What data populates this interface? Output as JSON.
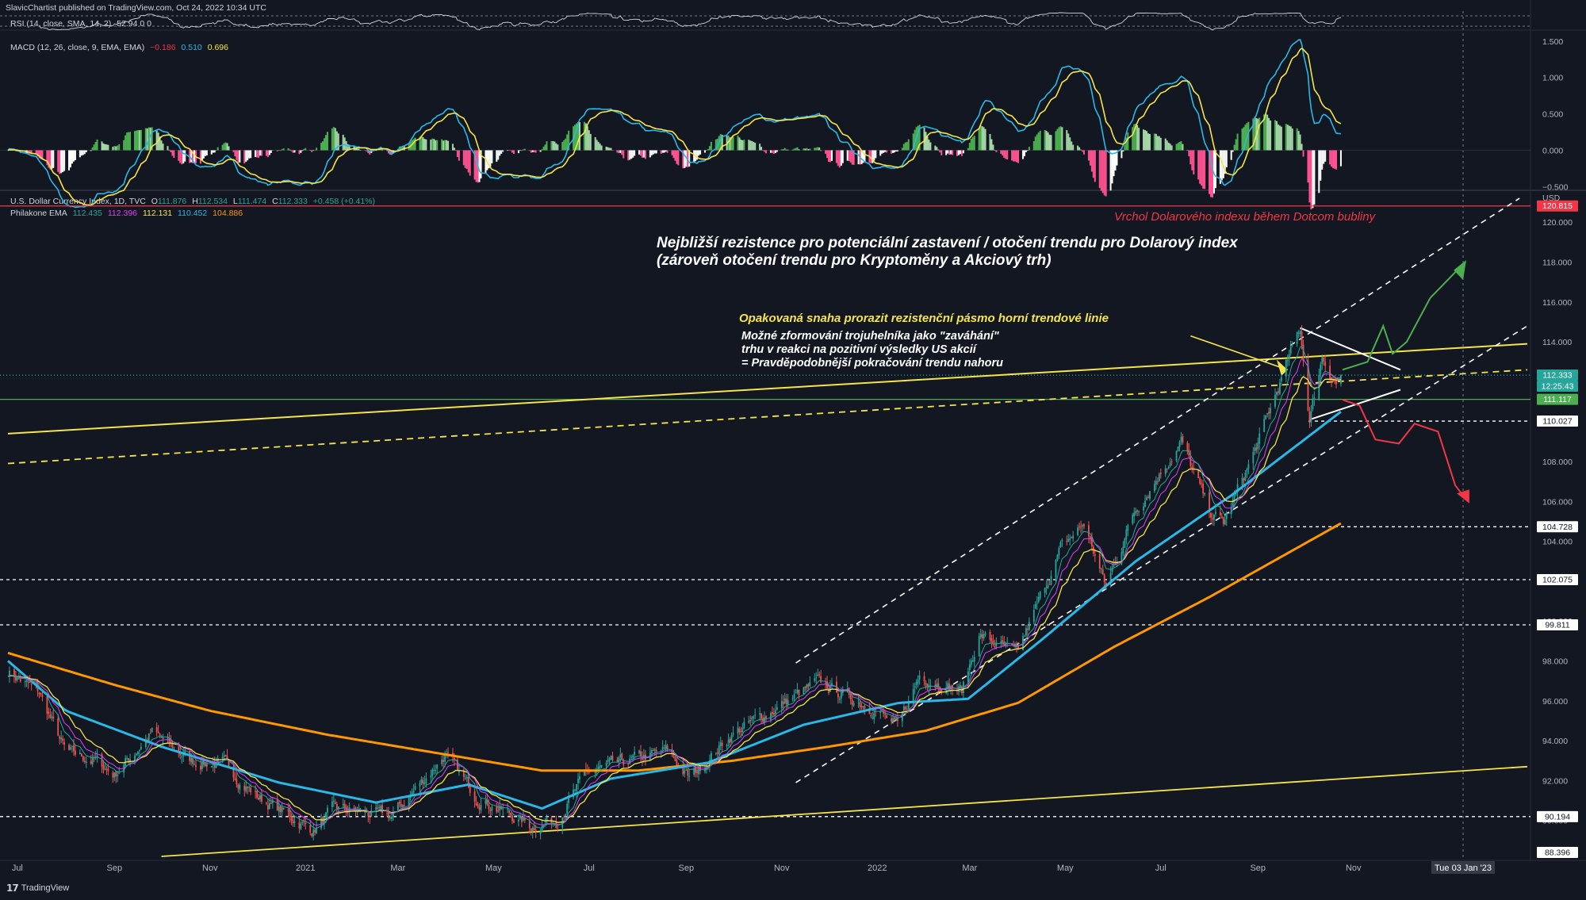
{
  "header": {
    "published": "SlavicChartist published on TradingView.com, Oct 24, 2022 10:34 UTC"
  },
  "rsi_legend": {
    "label": "RSI (14, close, SMA, 14, 2)",
    "values": "52.94  0  0"
  },
  "macd_legend": {
    "label": "MACD (12, 26, close, 9, EMA, EMA)",
    "v1": "−0.186",
    "v2": "0.510",
    "v3": "0.696",
    "colors": {
      "v1": "#f23645",
      "v2": "#2ab8e6",
      "v3": "#f5e54a"
    }
  },
  "symbol_legend": {
    "symbol": "U.S. Dollar Currency Index, 1D, TVC",
    "o_label": "O",
    "o": "111.876",
    "h_label": "H",
    "h": "112.534",
    "l_label": "L",
    "l": "111.474",
    "c_label": "C",
    "c": "112.333",
    "change": "+0.458 (+0.41%)"
  },
  "ema_legend": {
    "label": "Philakone EMA",
    "values": [
      "112.435",
      "112.396",
      "112.131",
      "110.452",
      "104.886"
    ],
    "colors": [
      "#26a69a",
      "#e040fb",
      "#f5e54a",
      "#2ab8e6",
      "#ff9800"
    ]
  },
  "annotations": {
    "dotcom_top": "Vrchol Dolarového indexu během Dotcom bubliny",
    "main_title_1": "Nejbližší rezistence pro potenciální zastavení / otočení trendu pro Dolarový index",
    "main_title_2": "(zároveň otočení trendu pro Kryptoměny a Akciový trh)",
    "yellow_note": "Opakovaná snaha prorazit rezistenční pásmo horní trendové linie",
    "triangle_note_1": "Možné zformování trojuhelníka jako \"zaváhání\"",
    "triangle_note_2": "trhu v reakci na pozitivní výsledky US akcií",
    "triangle_note_3": "=  Pravděpodobnější pokračování trendu nahoru"
  },
  "price_axis": {
    "currency": "USD",
    "ticks": [
      "120.000",
      "118.000",
      "116.000",
      "114.000",
      "110.000",
      "108.000",
      "106.000",
      "104.000",
      "102.000",
      "100.000",
      "98.000",
      "96.000",
      "94.000",
      "92.000",
      "90.000"
    ],
    "levels": [
      {
        "value": "120.815",
        "bg": "#f23645",
        "fg": "#ffffff"
      },
      {
        "value": "112.333",
        "bg": "#26a69a",
        "fg": "#ffffff"
      },
      {
        "value": "12:25:43",
        "bg": "#26a69a",
        "fg": "#ffffff"
      },
      {
        "value": "111.117",
        "bg": "#4caf50",
        "fg": "#ffffff"
      },
      {
        "value": "110.027",
        "bg": "#ffffff",
        "fg": "#131722"
      },
      {
        "value": "104.728",
        "bg": "#ffffff",
        "fg": "#131722"
      },
      {
        "value": "102.075",
        "bg": "#ffffff",
        "fg": "#131722"
      },
      {
        "value": "99.811",
        "bg": "#ffffff",
        "fg": "#131722"
      },
      {
        "value": "90.194",
        "bg": "#ffffff",
        "fg": "#131722"
      },
      {
        "value": "88.396",
        "bg": "#ffffff",
        "fg": "#131722"
      }
    ]
  },
  "macd_axis": {
    "ticks": [
      "1.500",
      "1.000",
      "0.500",
      "0.000",
      "−0.500"
    ]
  },
  "time_axis": {
    "labels": [
      "Jul",
      "Sep",
      "Nov",
      "2021",
      "Mar",
      "May",
      "Jul",
      "Sep",
      "Nov",
      "2022",
      "Mar",
      "May",
      "Jul",
      "Sep",
      "Nov"
    ],
    "cursor_label": "Tue 03 Jan '23"
  },
  "footer": {
    "brand": "TradingView"
  },
  "chart_data": {
    "type": "candlestick",
    "title": "U.S. Dollar Currency Index, 1D, TVC",
    "ylabel": "USD",
    "ylim": [
      88.0,
      121.6
    ],
    "x_range": [
      "2020-07",
      "2023-02"
    ],
    "ohlc_last": {
      "o": 111.876,
      "h": 112.534,
      "l": 111.474,
      "c": 112.333
    },
    "close_path": [
      [
        "2020-06-25",
        97.5
      ],
      [
        "2020-07-15",
        96.4
      ],
      [
        "2020-08-01",
        93.4
      ],
      [
        "2020-08-20",
        93.0
      ],
      [
        "2020-09-01",
        92.3
      ],
      [
        "2020-09-25",
        94.4
      ],
      [
        "2020-10-20",
        93.0
      ],
      [
        "2020-11-10",
        92.8
      ],
      [
        "2020-12-01",
        91.2
      ],
      [
        "2021-01-06",
        89.5
      ],
      [
        "2021-01-20",
        90.6
      ],
      [
        "2021-02-25",
        90.2
      ],
      [
        "2021-03-31",
        93.3
      ],
      [
        "2021-04-20",
        91.2
      ],
      [
        "2021-05-25",
        89.7
      ],
      [
        "2021-06-10",
        90.0
      ],
      [
        "2021-06-30",
        92.4
      ],
      [
        "2021-08-20",
        93.5
      ],
      [
        "2021-09-03",
        92.1
      ],
      [
        "2021-09-30",
        94.3
      ],
      [
        "2021-11-24",
        96.9
      ],
      [
        "2021-12-31",
        95.6
      ],
      [
        "2022-01-14",
        94.6
      ],
      [
        "2022-01-28",
        97.3
      ],
      [
        "2022-02-24",
        96.5
      ],
      [
        "2022-03-07",
        99.3
      ],
      [
        "2022-03-31",
        98.3
      ],
      [
        "2022-04-28",
        103.6
      ],
      [
        "2022-05-13",
        104.9
      ],
      [
        "2022-05-27",
        101.7
      ],
      [
        "2022-06-14",
        105.5
      ],
      [
        "2022-07-14",
        109.0
      ],
      [
        "2022-08-01",
        105.5
      ],
      [
        "2022-08-10",
        104.9
      ],
      [
        "2022-08-31",
        108.7
      ],
      [
        "2022-09-28",
        114.7
      ],
      [
        "2022-10-04",
        110.1
      ],
      [
        "2022-10-12",
        113.3
      ],
      [
        "2022-10-21",
        111.9
      ],
      [
        "2022-10-24",
        112.3
      ]
    ],
    "ema_200_path": [
      [
        "2020-06-25",
        98.4
      ],
      [
        "2020-09-01",
        96.8
      ],
      [
        "2020-11-01",
        95.5
      ],
      [
        "2021-01-15",
        94.3
      ],
      [
        "2021-04-01",
        93.3
      ],
      [
        "2021-06-01",
        92.5
      ],
      [
        "2021-08-01",
        92.5
      ],
      [
        "2021-10-01",
        93.0
      ],
      [
        "2021-12-01",
        93.7
      ],
      [
        "2022-02-01",
        94.5
      ],
      [
        "2022-04-01",
        95.9
      ],
      [
        "2022-06-01",
        98.7
      ],
      [
        "2022-08-01",
        101.2
      ],
      [
        "2022-10-24",
        104.9
      ]
    ],
    "ema_50_path": [
      [
        "2020-06-25",
        98.0
      ],
      [
        "2020-08-01",
        95.5
      ],
      [
        "2020-10-01",
        93.7
      ],
      [
        "2020-12-15",
        91.9
      ],
      [
        "2021-02-15",
        90.9
      ],
      [
        "2021-04-15",
        91.8
      ],
      [
        "2021-06-01",
        90.6
      ],
      [
        "2021-07-15",
        92.1
      ],
      [
        "2021-09-15",
        92.9
      ],
      [
        "2021-11-15",
        94.8
      ],
      [
        "2022-01-15",
        95.9
      ],
      [
        "2022-02-28",
        96.1
      ],
      [
        "2022-04-15",
        99.0
      ],
      [
        "2022-06-15",
        103.0
      ],
      [
        "2022-08-15",
        106.3
      ],
      [
        "2022-10-24",
        110.5
      ]
    ],
    "levels": [
      120.815,
      112.333,
      111.117,
      110.027,
      104.728,
      102.075,
      99.811,
      90.194,
      88.396
    ],
    "macd_ylim": [
      -0.55,
      1.65
    ]
  }
}
